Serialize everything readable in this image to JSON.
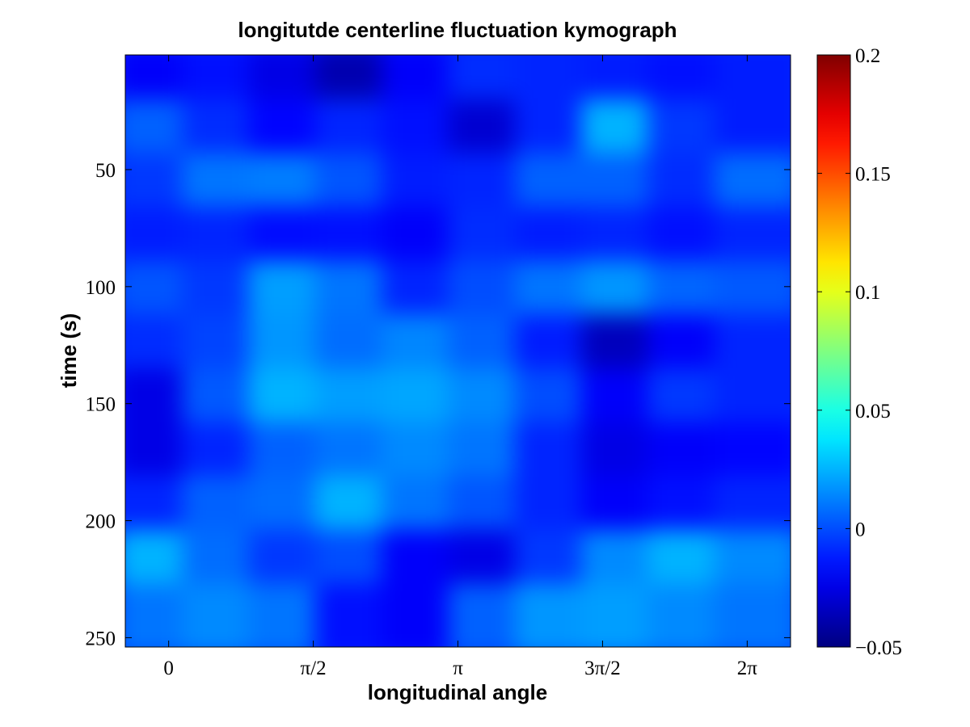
{
  "chart_data": {
    "type": "heatmap",
    "title": "longitutde centerline fluctuation kymograph",
    "xlabel": "longitudinal angle",
    "ylabel": "time (s)",
    "x_range": [
      -0.471,
      6.754
    ],
    "x_ticks": [
      {
        "value": 0,
        "label": "0"
      },
      {
        "value": 1.5708,
        "label": "π/2"
      },
      {
        "value": 3.1416,
        "label": "π"
      },
      {
        "value": 4.7124,
        "label": "3π/2"
      },
      {
        "value": 6.2832,
        "label": "2π"
      }
    ],
    "y_range": [
      1,
      254
    ],
    "y_reversed": true,
    "y_ticks": [
      {
        "value": 50,
        "label": "50"
      },
      {
        "value": 100,
        "label": "100"
      },
      {
        "value": 150,
        "label": "150"
      },
      {
        "value": 200,
        "label": "200"
      },
      {
        "value": 250,
        "label": "250"
      }
    ],
    "colormap": "jet",
    "color_range": [
      -0.05,
      0.2
    ],
    "colorbar_ticks": [
      {
        "value": 0.2,
        "label": "0.2"
      },
      {
        "value": 0.15,
        "label": "0.15"
      },
      {
        "value": 0.1,
        "label": "0.1"
      },
      {
        "value": 0.05,
        "label": "0.05"
      },
      {
        "value": 0,
        "label": "0"
      },
      {
        "value": -0.05,
        "label": "−0.05"
      }
    ],
    "grid": false,
    "values": [
      [
        -0.02,
        -0.015,
        -0.025,
        -0.038,
        -0.02,
        -0.008,
        -0.01,
        -0.012,
        -0.015,
        -0.012
      ],
      [
        0.005,
        -0.008,
        -0.018,
        -0.01,
        -0.015,
        -0.03,
        -0.01,
        0.025,
        -0.005,
        -0.012
      ],
      [
        -0.005,
        0.01,
        0.012,
        0.002,
        -0.012,
        -0.01,
        0.005,
        0.005,
        -0.008,
        0.008
      ],
      [
        -0.012,
        -0.01,
        -0.016,
        -0.015,
        -0.02,
        -0.008,
        -0.012,
        -0.01,
        -0.015,
        -0.01
      ],
      [
        0.002,
        -0.005,
        0.02,
        0.01,
        -0.01,
        0.0,
        0.01,
        0.018,
        0.006,
        0.003
      ],
      [
        -0.008,
        -0.002,
        0.018,
        0.008,
        0.014,
        0.005,
        -0.012,
        -0.035,
        -0.02,
        -0.01
      ],
      [
        -0.025,
        0.003,
        0.025,
        0.02,
        0.022,
        0.015,
        0.0,
        -0.02,
        -0.005,
        -0.01
      ],
      [
        -0.025,
        -0.01,
        0.005,
        0.01,
        0.015,
        0.01,
        -0.01,
        -0.025,
        -0.02,
        -0.018
      ],
      [
        -0.01,
        0.005,
        0.008,
        0.025,
        0.01,
        0.002,
        -0.01,
        -0.02,
        -0.015,
        -0.01
      ],
      [
        0.025,
        0.008,
        -0.005,
        0.0,
        -0.02,
        -0.025,
        -0.005,
        0.015,
        0.025,
        0.015
      ],
      [
        0.01,
        0.015,
        0.01,
        -0.015,
        -0.02,
        0.005,
        0.018,
        0.02,
        0.015,
        0.01
      ]
    ]
  }
}
